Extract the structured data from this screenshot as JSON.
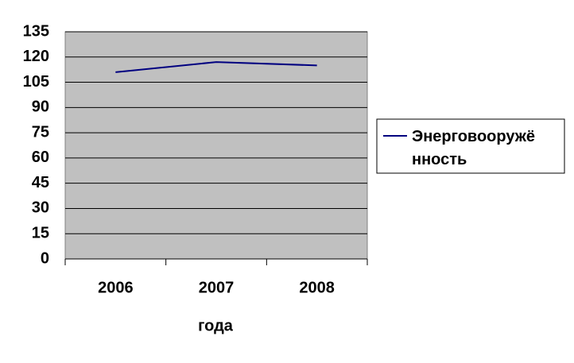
{
  "chart_data": {
    "type": "line",
    "categories": [
      "2006",
      "2007",
      "2008"
    ],
    "x_label": "года",
    "series": [
      {
        "name": "Энерговооружённость",
        "color": "#000080",
        "values": [
          111,
          117,
          115
        ]
      }
    ],
    "ylim": [
      0,
      135
    ],
    "yticks": [
      0,
      15,
      30,
      45,
      60,
      75,
      90,
      105,
      120,
      135
    ],
    "grid": true,
    "plot_background": "#c0c0c0",
    "legend": "right"
  }
}
